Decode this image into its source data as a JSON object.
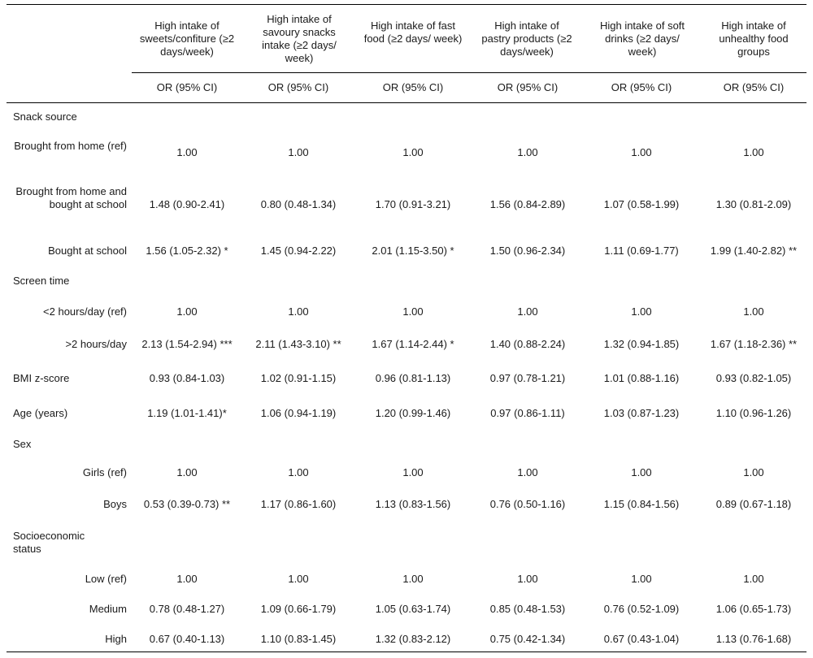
{
  "columns": [
    {
      "header": "High intake of sweets/confiture (≥2 days/week)",
      "sub": "OR (95% CI)"
    },
    {
      "header": "High intake of savoury snacks intake (≥2 days/ week)",
      "sub": "OR (95% CI)"
    },
    {
      "header": "High intake of fast food (≥2 days/ week)",
      "sub": "OR (95% CI)"
    },
    {
      "header": "High intake of pastry products (≥2 days/week)",
      "sub": "OR (95% CI)"
    },
    {
      "header": "High intake of soft drinks (≥2 days/ week)",
      "sub": "OR (95% CI)"
    },
    {
      "header": "High intake of unhealthy food groups",
      "sub": "OR (95% CI)"
    }
  ],
  "rows": [
    {
      "label": "Snack source",
      "type": "section",
      "values": []
    },
    {
      "label": "Brought from home (ref)",
      "type": "sub",
      "values": [
        "1.00",
        "1.00",
        "1.00",
        "1.00",
        "1.00",
        "1.00"
      ]
    },
    {
      "label": "Brought from home and bought at school",
      "type": "sub",
      "values": [
        "1.48 (0.90-2.41)",
        "0.80 (0.48-1.34)",
        "1.70 (0.91-3.21)",
        "1.56 (0.84-2.89)",
        "1.07 (0.58-1.99)",
        "1.30 (0.81-2.09)"
      ]
    },
    {
      "label": "Bought at school",
      "type": "sub",
      "values": [
        "1.56 (1.05-2.32) *",
        "1.45 (0.94-2.22)",
        "2.01 (1.15-3.50) *",
        "1.50 (0.96-2.34)",
        "1.11 (0.69-1.77)",
        "1.99 (1.40-2.82) **"
      ]
    },
    {
      "label": "Screen time",
      "type": "section",
      "values": []
    },
    {
      "label": "<2 hours/day (ref)",
      "type": "sub",
      "values": [
        "1.00",
        "1.00",
        "1.00",
        "1.00",
        "1.00",
        "1.00"
      ]
    },
    {
      "label": ">2 hours/day",
      "type": "sub",
      "values": [
        "2.13 (1.54-2.94) ***",
        "2.11 (1.43-3.10) **",
        "1.67 (1.14-2.44) *",
        "1.40 (0.88-2.24)",
        "1.32 (0.94-1.85)",
        "1.67 (1.18-2.36) **"
      ]
    },
    {
      "label": "BMI z-score",
      "type": "section",
      "values": [
        "0.93 (0.84-1.03)",
        "1.02 (0.91-1.15)",
        "0.96 (0.81-1.13)",
        "0.97 (0.78-1.21)",
        "1.01 (0.88-1.16)",
        "0.93 (0.82-1.05)"
      ]
    },
    {
      "label": "Age (years)",
      "type": "section",
      "values": [
        "1.19 (1.01-1.41)*",
        "1.06 (0.94-1.19)",
        "1.20 (0.99-1.46)",
        "0.97 (0.86-1.11)",
        "1.03 (0.87-1.23)",
        "1.10 (0.96-1.26)"
      ]
    },
    {
      "label": "Sex",
      "type": "section",
      "values": []
    },
    {
      "label": "Girls (ref)",
      "type": "sub",
      "values": [
        "1.00",
        "1.00",
        "1.00",
        "1.00",
        "1.00",
        "1.00"
      ]
    },
    {
      "label": "Boys",
      "type": "sub",
      "values": [
        "0.53 (0.39-0.73) **",
        "1.17 (0.86-1.60)",
        "1.13 (0.83-1.56)",
        "0.76 (0.50-1.16)",
        "1.15 (0.84-1.56)",
        "0.89 (0.67-1.18)"
      ]
    },
    {
      "label": "Socioeconomic status",
      "type": "section",
      "values": []
    },
    {
      "label": "Low (ref)",
      "type": "sub",
      "values": [
        "1.00",
        "1.00",
        "1.00",
        "1.00",
        "1.00",
        "1.00"
      ]
    },
    {
      "label": "Medium",
      "type": "sub",
      "values": [
        "0.78 (0.48-1.27)",
        "1.09 (0.66-1.79)",
        "1.05 (0.63-1.74)",
        "0.85 (0.48-1.53)",
        "0.76 (0.52-1.09)",
        "1.06 (0.65-1.73)"
      ]
    },
    {
      "label": "High",
      "type": "sub",
      "values": [
        "0.67 (0.40-1.13)",
        "1.10 (0.83-1.45)",
        "1.32 (0.83-2.12)",
        "0.75 (0.42-1.34)",
        "0.67 (0.43-1.04)",
        "1.13 (0.76-1.68)"
      ]
    }
  ]
}
